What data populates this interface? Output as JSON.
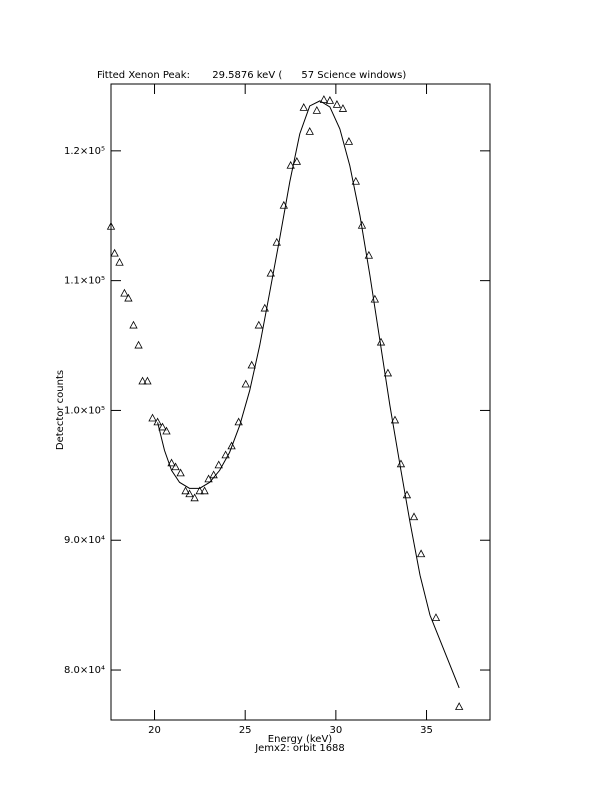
{
  "chart_data": {
    "type": "line",
    "title": "Fitted Xenon Peak:       29.5876 keV (      57 Science windows)",
    "xlabel": "Energy (keV)",
    "subtitle": "Jemx2: orbit 1688",
    "ylabel": "Detector counts",
    "xlim": [
      17.6,
      38.5
    ],
    "ylim": [
      76150,
      125150
    ],
    "xticks": [
      20,
      25,
      30,
      35
    ],
    "yticks": [
      {
        "value": 80000,
        "label": "8.0×10⁴"
      },
      {
        "value": 90000,
        "label": "9.0×10⁴"
      },
      {
        "value": 100000,
        "label": "1.0×10⁵"
      },
      {
        "value": 110000,
        "label": "1.1×10⁵"
      },
      {
        "value": 120000,
        "label": "1.2×10⁵"
      }
    ],
    "series": [
      {
        "color": "#000000",
        "marker": "triangle",
        "x": [
          17.6,
          17.8,
          18.07,
          18.34,
          18.56,
          18.84,
          19.12,
          19.34,
          19.61,
          19.89,
          20.17,
          20.44,
          20.66,
          20.94,
          21.16,
          21.44,
          21.71,
          21.93,
          22.21,
          22.49,
          22.76,
          22.98,
          23.26,
          23.54,
          23.92,
          24.25,
          24.64,
          25.03,
          25.36,
          25.75,
          26.08,
          26.41,
          26.74,
          27.13,
          27.51,
          27.85,
          28.23,
          28.56,
          28.95,
          29.34,
          29.67,
          30.06,
          30.39,
          30.72,
          31.1,
          31.44,
          31.82,
          32.15,
          32.49,
          32.87,
          33.26,
          33.59,
          33.92,
          34.31,
          34.7,
          35.52,
          36.8
        ],
        "values": [
          114150,
          112080,
          111380,
          109000,
          108620,
          106540,
          105000,
          102230,
          102230,
          99380,
          99080,
          98690,
          98380,
          95920,
          95620,
          95150,
          93770,
          93540,
          93230,
          93770,
          93770,
          94690,
          95000,
          95770,
          96540,
          97230,
          99080,
          102000,
          103460,
          106540,
          107850,
          110540,
          112920,
          115770,
          118850,
          119150,
          123310,
          121460,
          123080,
          123920,
          123850,
          123540,
          123230,
          120690,
          117620,
          114230,
          111920,
          108540,
          105230,
          102850,
          99230,
          95850,
          93460,
          91770,
          88920,
          84000,
          77150
        ]
      },
      {
        "color": "#000000",
        "marker": "none",
        "x": [
          20.17,
          20.55,
          20.94,
          21.38,
          21.93,
          22.49,
          23.04,
          23.59,
          24.14,
          24.7,
          25.25,
          25.8,
          26.35,
          26.91,
          27.46,
          28.01,
          28.56,
          29.12,
          29.67,
          30.22,
          30.77,
          31.33,
          31.88,
          32.43,
          32.98,
          33.54,
          34.09,
          34.64,
          35.19,
          35.52,
          36.8
        ],
        "values": [
          99080,
          96920,
          95380,
          94460,
          94000,
          94000,
          94460,
          95380,
          96770,
          98850,
          101540,
          105000,
          109080,
          113310,
          117620,
          121310,
          123460,
          123850,
          123380,
          121690,
          118850,
          115000,
          110380,
          105380,
          100380,
          95770,
          91380,
          87310,
          84230,
          83080,
          78620
        ]
      }
    ]
  }
}
